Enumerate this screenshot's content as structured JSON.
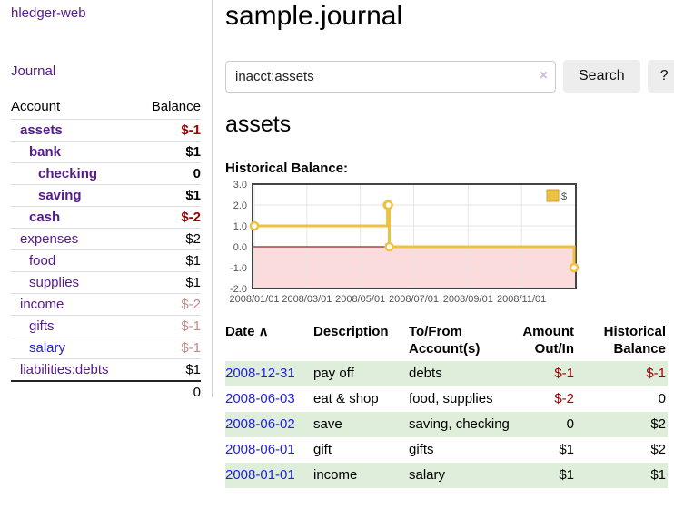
{
  "app": {
    "brand": "hledger-web"
  },
  "sidebar": {
    "journal_label": "Journal",
    "table": {
      "account_header": "Account",
      "balance_header": "Balance",
      "rows": [
        {
          "name": "assets",
          "depth": 0,
          "bold": true,
          "balance": "$-1"
        },
        {
          "name": "bank",
          "depth": 1,
          "bold": true,
          "balance": "$1"
        },
        {
          "name": "checking",
          "depth": 2,
          "bold": true,
          "balance": "0"
        },
        {
          "name": "saving",
          "depth": 2,
          "bold": true,
          "balance": "$1"
        },
        {
          "name": "cash",
          "depth": 1,
          "bold": true,
          "balance": "$-2"
        },
        {
          "name": "expenses",
          "depth": 0,
          "bold": false,
          "balance": "$2"
        },
        {
          "name": "food",
          "depth": 1,
          "bold": false,
          "balance": "$1"
        },
        {
          "name": "supplies",
          "depth": 1,
          "bold": false,
          "balance": "$1"
        },
        {
          "name": "income",
          "depth": 0,
          "bold": false,
          "balance": "$-2"
        },
        {
          "name": "gifts",
          "depth": 1,
          "bold": false,
          "balance": "$-1"
        },
        {
          "name": "salary",
          "depth": 1,
          "bold": false,
          "balance": "$-1",
          "link_class": "unvisited"
        },
        {
          "name": "liabilities:debts",
          "depth": 0,
          "bold": false,
          "balance": "$1"
        }
      ],
      "total": "0"
    }
  },
  "header": {
    "title": "sample.journal"
  },
  "search": {
    "value": "inacct:assets",
    "clear_icon": "×",
    "button_label": "Search",
    "help_label": "?"
  },
  "account_page": {
    "title": "assets",
    "chart_label": "Historical Balance:"
  },
  "chart_data": {
    "type": "line",
    "step": true,
    "title": "Historical Balance:",
    "series": [
      {
        "name": "$",
        "color": "#edc240",
        "points": [
          [
            "2008-01-01",
            1
          ],
          [
            "2008-06-01",
            2
          ],
          [
            "2008-06-02",
            2
          ],
          [
            "2008-06-03",
            0
          ],
          [
            "2008-12-31",
            -1
          ]
        ]
      }
    ],
    "x_ticks": [
      {
        "label": "2008/01/01",
        "date": "2008-01-01"
      },
      {
        "label": "2008/03/01",
        "date": "2008-03-01"
      },
      {
        "label": "2008/05/01",
        "date": "2008-05-01"
      },
      {
        "label": "2008/07/01",
        "date": "2008-07-01"
      },
      {
        "label": "2008/09/01",
        "date": "2008-09-01"
      },
      {
        "label": "2008/11/01",
        "date": "2008-11-01"
      }
    ],
    "y_ticks": [
      "3.0",
      "2.0",
      "1.0",
      "0.0",
      "-1.0",
      "-2.0"
    ],
    "ylim": [
      -2,
      3
    ],
    "xlim": [
      "2008-01-01",
      "2008-12-31"
    ],
    "legend_position": "top-right",
    "grid": true,
    "negative_region_color": "#fbdbdb",
    "zero_line_color": "#992222",
    "border_color": "#444444",
    "gridline_color": "#e6e6e6"
  },
  "register": {
    "columns": [
      {
        "lines": [
          "Date ∧"
        ],
        "align": "left"
      },
      {
        "lines": [
          "Description"
        ],
        "align": "left"
      },
      {
        "lines": [
          "To/From",
          "Account(s)"
        ],
        "align": "left"
      },
      {
        "lines": [
          "Amount",
          "Out/In"
        ],
        "align": "right"
      },
      {
        "lines": [
          "Historical",
          "Balance"
        ],
        "align": "right"
      }
    ],
    "rows": [
      {
        "date": "2008-12-31",
        "description": "pay off",
        "accounts": "debts",
        "amount": "$-1",
        "balance": "$-1"
      },
      {
        "date": "2008-06-03",
        "description": "eat & shop",
        "accounts": "food, supplies",
        "amount": "$-2",
        "balance": "0"
      },
      {
        "date": "2008-06-02",
        "description": "save",
        "accounts": "saving, checking",
        "amount": "0",
        "balance": "$2"
      },
      {
        "date": "2008-06-01",
        "description": "gift",
        "accounts": "gifts",
        "amount": "$1",
        "balance": "$2"
      },
      {
        "date": "2008-01-01",
        "description": "income",
        "accounts": "salary",
        "amount": "$1",
        "balance": "$1"
      }
    ]
  },
  "colors": {
    "link_purple": "#551a8b",
    "link_blue": "#2222dd",
    "negative_strong": "#a00000",
    "negative_faint": "#c48a8a",
    "row_stripe_green": "#deeeda",
    "button_gray": "#ededed",
    "series_gold": "#edc240"
  }
}
